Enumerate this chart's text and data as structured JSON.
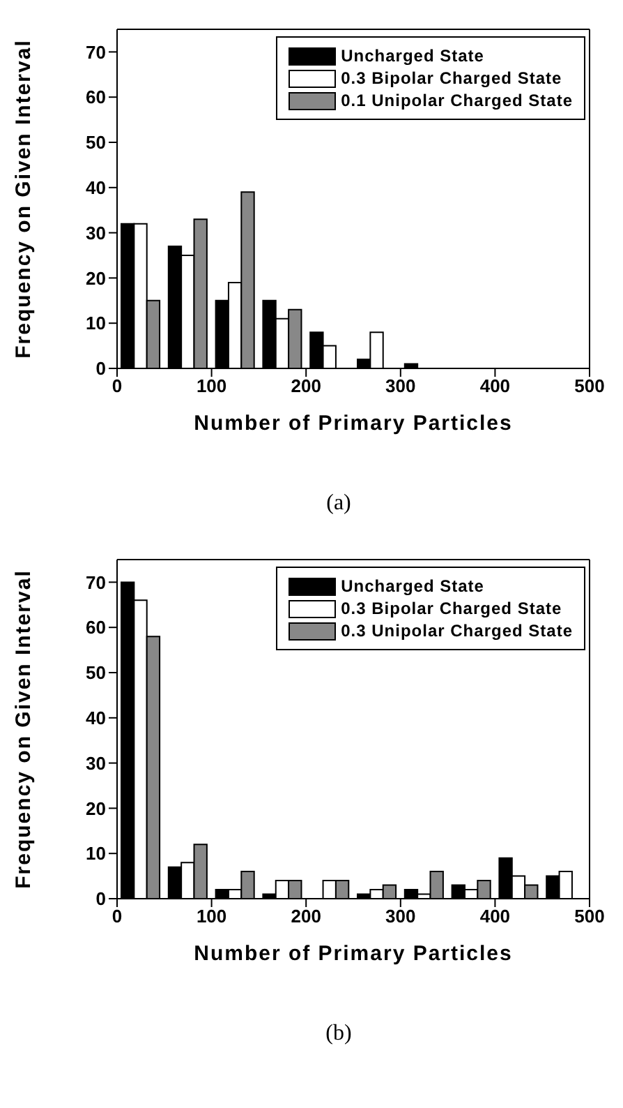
{
  "chart_data": [
    {
      "type": "bar",
      "xlabel": "Number of Primary Particles",
      "ylabel": "Frequency on Given Interval",
      "x": [
        25,
        75,
        125,
        175,
        225,
        275,
        325,
        375,
        425,
        475
      ],
      "series": [
        {
          "name": "Uncharged State",
          "color": "#000000",
          "values": [
            32,
            27,
            15,
            15,
            8,
            2,
            1,
            0,
            0,
            0
          ]
        },
        {
          "name": "0.3 Bipolar Charged State",
          "color": "#ffffff",
          "values": [
            32,
            25,
            19,
            11,
            5,
            8,
            0,
            0,
            0,
            0
          ]
        },
        {
          "name": "0.1 Unipolar Charged State",
          "color": "#888888",
          "values": [
            15,
            33,
            39,
            13,
            0,
            0,
            0,
            0,
            0,
            0
          ]
        }
      ],
      "xlim": [
        0,
        500
      ],
      "xticks": [
        0,
        100,
        200,
        300,
        400,
        500
      ],
      "ylim": [
        0,
        75
      ],
      "yticks": [
        0,
        10,
        20,
        30,
        40,
        50,
        60,
        70
      ],
      "grid": false,
      "legend": "top right",
      "annotations": [
        "(a)"
      ]
    },
    {
      "type": "bar",
      "xlabel": "Number of Primary Particles",
      "ylabel": "Frequency on Given Interval",
      "x": [
        25,
        75,
        125,
        175,
        225,
        275,
        325,
        375,
        425,
        475
      ],
      "series": [
        {
          "name": "Uncharged State",
          "color": "#000000",
          "values": [
            70,
            7,
            2,
            1,
            0,
            1,
            2,
            3,
            9,
            5
          ]
        },
        {
          "name": "0.3 Bipolar Charged State",
          "color": "#ffffff",
          "values": [
            66,
            8,
            2,
            4,
            4,
            2,
            1,
            2,
            5,
            6
          ]
        },
        {
          "name": "0.3 Unipolar Charged State",
          "color": "#888888",
          "values": [
            58,
            12,
            6,
            4,
            4,
            3,
            6,
            4,
            3,
            0
          ]
        }
      ],
      "xlim": [
        0,
        500
      ],
      "xticks": [
        0,
        100,
        200,
        300,
        400,
        500
      ],
      "ylim": [
        0,
        75
      ],
      "yticks": [
        0,
        10,
        20,
        30,
        40,
        50,
        60,
        70
      ],
      "grid": false,
      "legend": "top right",
      "annotations": [
        "(b)"
      ]
    }
  ]
}
